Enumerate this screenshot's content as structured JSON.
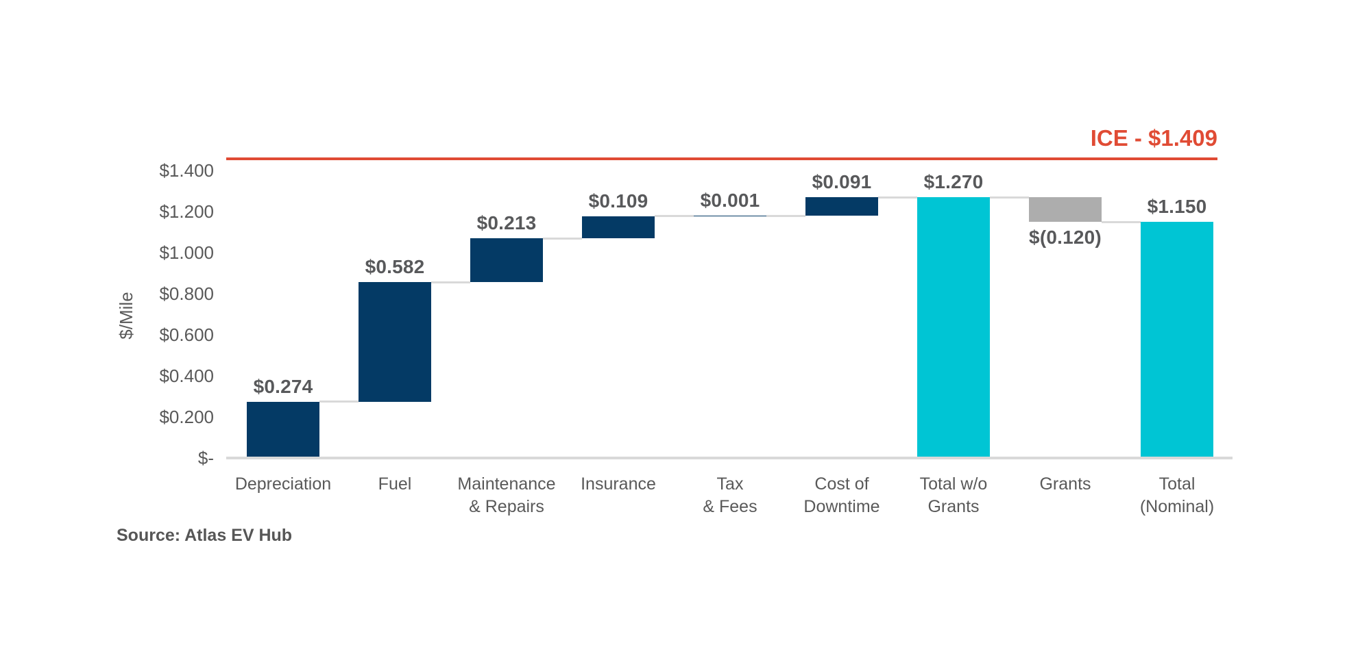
{
  "page": {
    "background": "#FFFFFF"
  },
  "chart_data": {
    "type": "bar",
    "subtype": "waterfall",
    "title": "",
    "xlabel": "",
    "ylabel": "$/Mile",
    "source_note": "Source: Atlas EV Hub",
    "ylim": [
      0,
      1.4
    ],
    "grid": false,
    "legend": "none",
    "yticks": [
      {
        "value": 1.4,
        "label": "$1.400"
      },
      {
        "value": 1.2,
        "label": "$1.200"
      },
      {
        "value": 1.0,
        "label": "$1.000"
      },
      {
        "value": 0.8,
        "label": "$0.800"
      },
      {
        "value": 0.6,
        "label": "$0.600"
      },
      {
        "value": 0.4,
        "label": "$0.400"
      },
      {
        "value": 0.2,
        "label": "$0.200"
      },
      {
        "value": 0.0,
        "label": "$-"
      }
    ],
    "bars": [
      {
        "category": "Depreciation",
        "value": 0.274,
        "label": "$0.274",
        "start": 0,
        "end": 0.274,
        "kind": "component",
        "label_position": "above"
      },
      {
        "category": "Fuel",
        "value": 0.582,
        "label": "$0.582",
        "start": 0.274,
        "end": 0.856,
        "kind": "component",
        "label_position": "above"
      },
      {
        "category": "Maintenance\n& Repairs",
        "value": 0.213,
        "label": "$0.213",
        "start": 0.856,
        "end": 1.069,
        "kind": "component",
        "label_position": "above"
      },
      {
        "category": "Insurance",
        "value": 0.109,
        "label": "$0.109",
        "start": 1.069,
        "end": 1.178,
        "kind": "component",
        "label_position": "above"
      },
      {
        "category": "Tax\n& Fees",
        "value": 0.001,
        "label": "$0.001",
        "start": 1.178,
        "end": 1.179,
        "kind": "component",
        "label_position": "above"
      },
      {
        "category": "Cost of\nDowntime",
        "value": 0.091,
        "label": "$0.091",
        "start": 1.179,
        "end": 1.27,
        "kind": "component",
        "label_position": "above"
      },
      {
        "category": "Total w/o\nGrants",
        "value": 1.27,
        "label": "$1.270",
        "start": 0,
        "end": 1.27,
        "kind": "total",
        "label_position": "above"
      },
      {
        "category": "Grants",
        "value": -0.12,
        "label": "$(0.120)",
        "start": 1.27,
        "end": 1.15,
        "kind": "negative",
        "label_position": "below"
      },
      {
        "category": "Total\n(Nominal)",
        "value": 1.15,
        "label": "$1.150",
        "start": 0,
        "end": 1.15,
        "kind": "total",
        "label_position": "above"
      }
    ],
    "reference_line": {
      "label": "ICE - $1.409",
      "value": 1.409,
      "color": "#E04B34"
    },
    "colors": {
      "component": "#043A65",
      "total": "#00C5D4",
      "negative": "#ADADAD",
      "connector": "#D9D9D9",
      "axis_line": "#D9D9D9",
      "value_label": "#58595B",
      "tick_label": "#595959",
      "category_label": "#595959",
      "reference": "#E04B34",
      "source": "#565656"
    }
  }
}
